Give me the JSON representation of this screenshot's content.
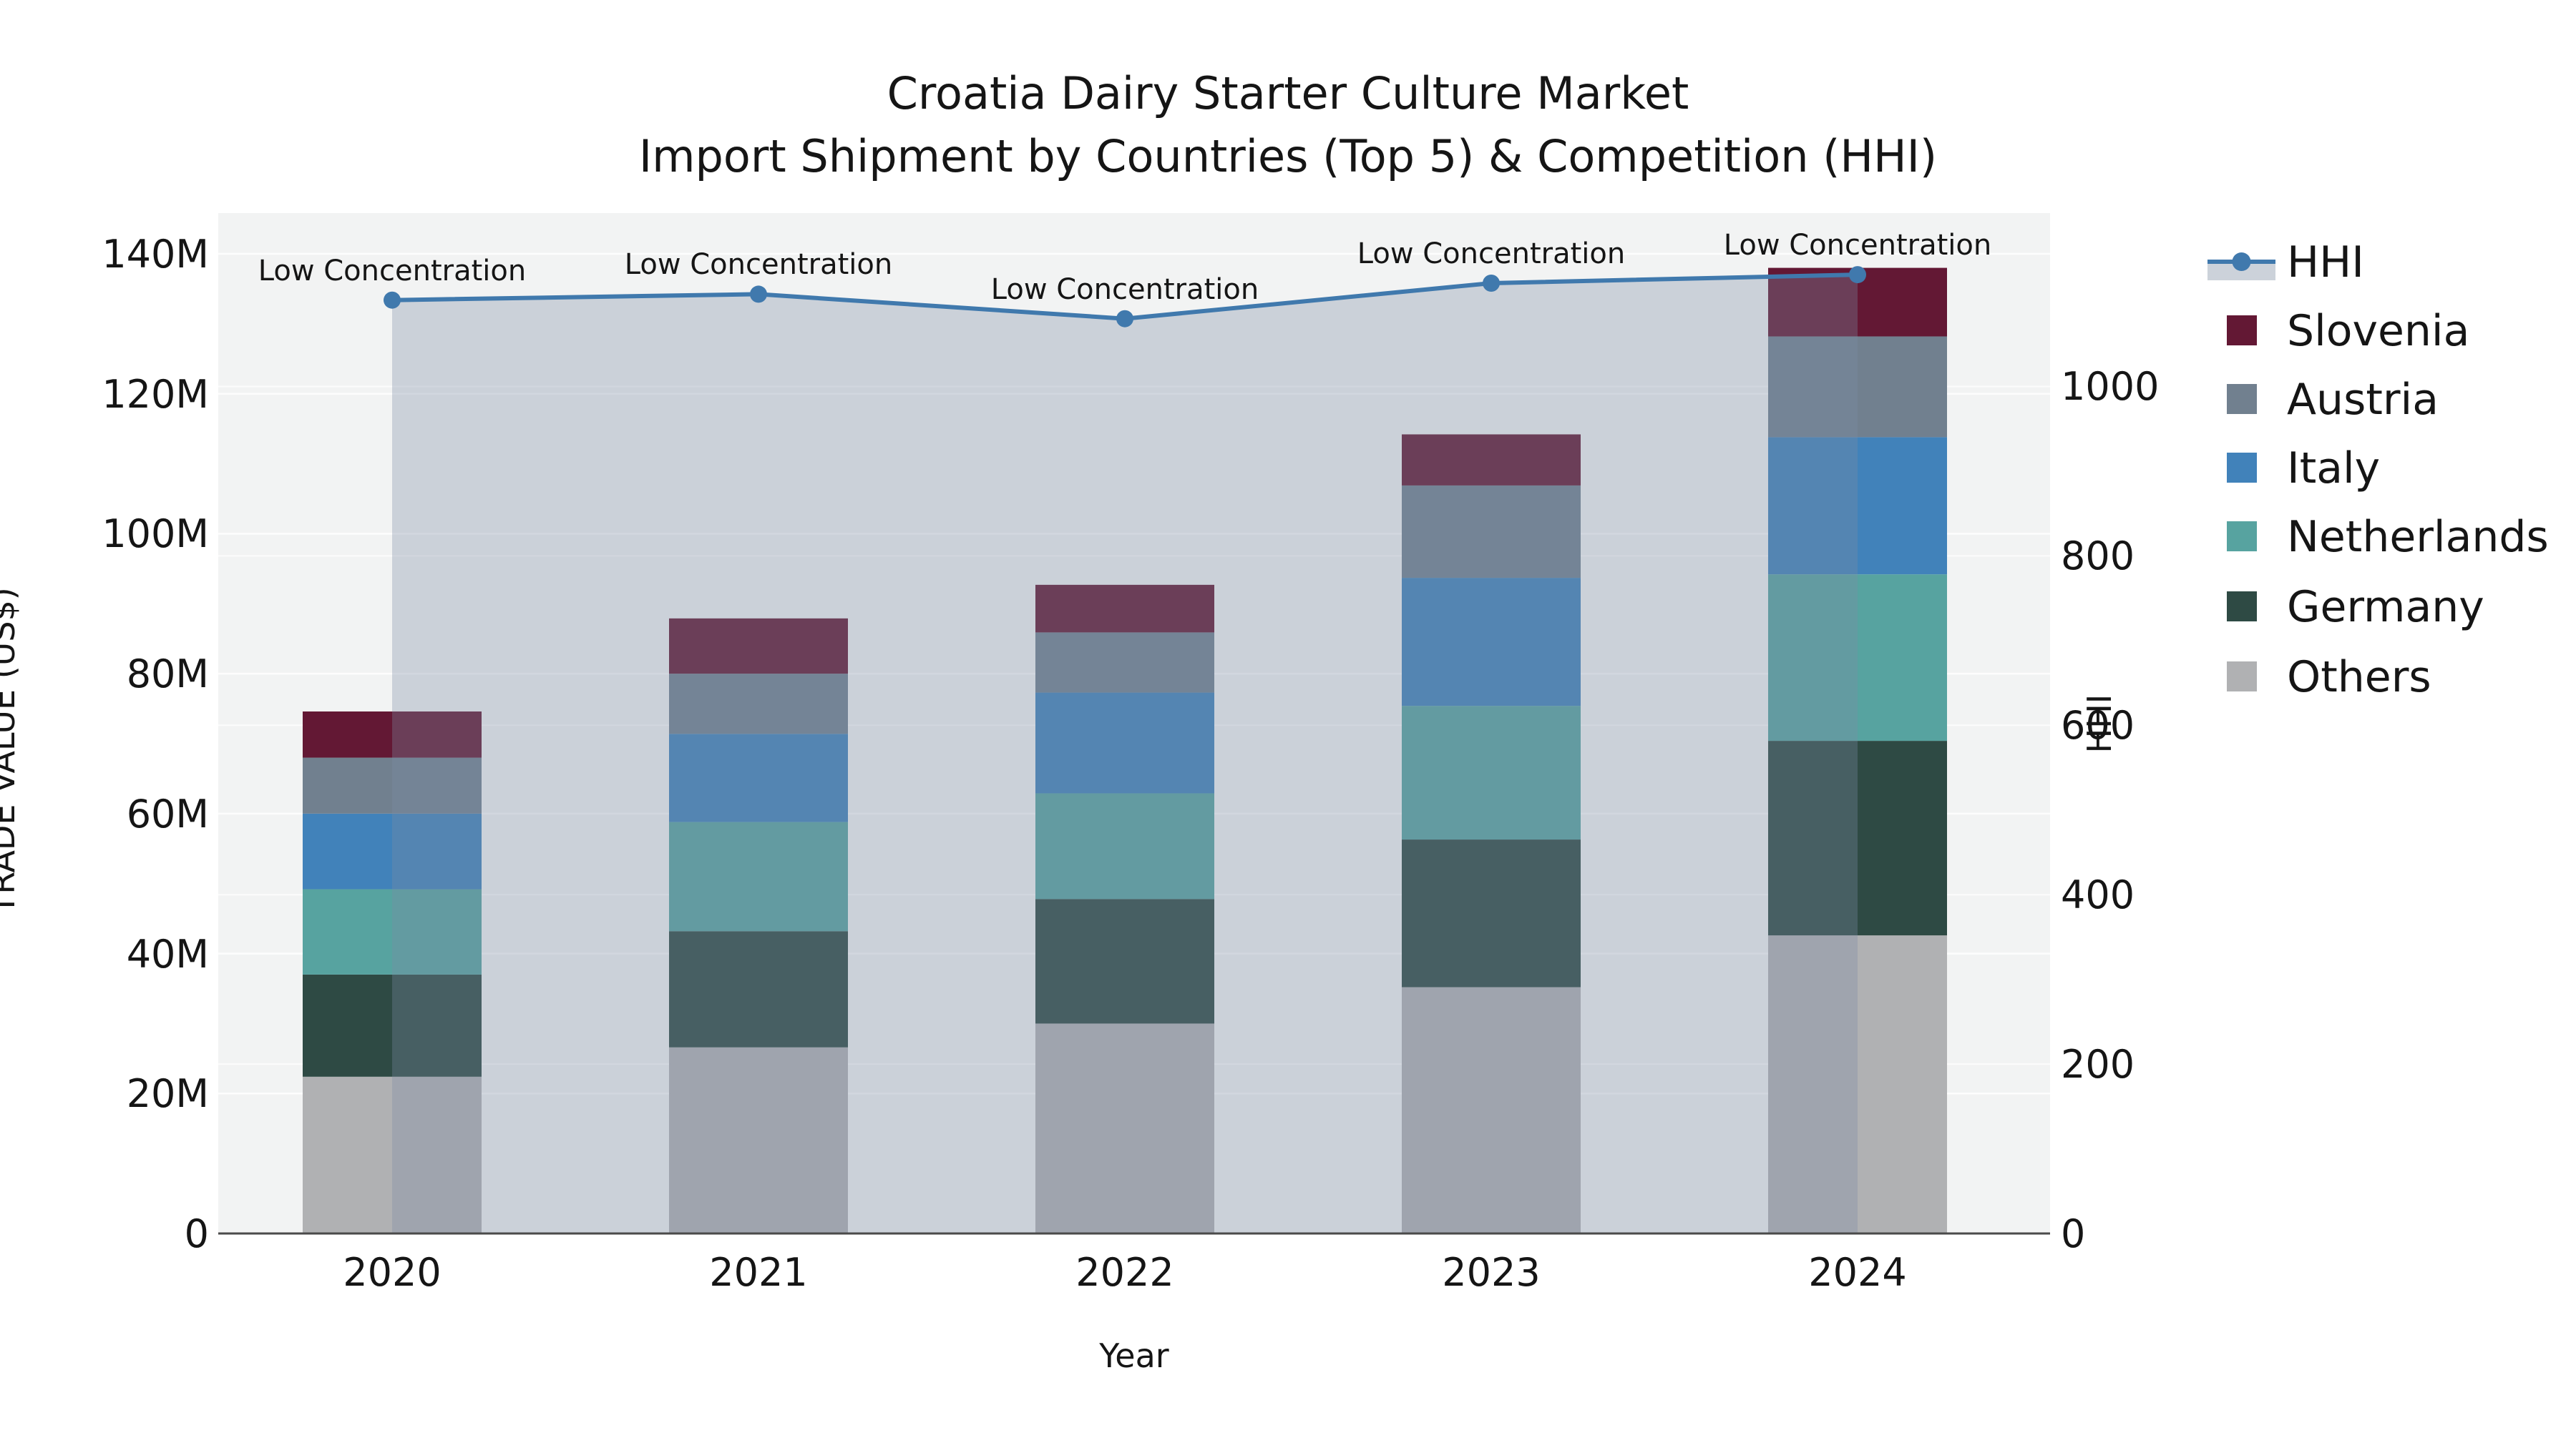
{
  "title": {
    "line1": "Croatia Dairy Starter Culture Market",
    "line2": "Import Shipment by Countries (Top 5) & Competition (HHI)"
  },
  "chart_data": {
    "type": "stacked-bar+line",
    "categories": [
      "2020",
      "2021",
      "2022",
      "2023",
      "2024"
    ],
    "unit": "US$ millions (trade value), HHI index (line)",
    "series": [
      {
        "name": "Others",
        "color": "#b0b1b3",
        "values": [
          22.4,
          26.6,
          30.0,
          35.2,
          42.6
        ]
      },
      {
        "name": "Germany",
        "color": "#2e4a44",
        "values": [
          14.6,
          16.6,
          17.8,
          21.1,
          27.8
        ]
      },
      {
        "name": "Netherlands",
        "color": "#57a3a0",
        "values": [
          12.2,
          15.6,
          15.1,
          19.1,
          23.8
        ]
      },
      {
        "name": "Italy",
        "color": "#4182ba",
        "values": [
          10.8,
          12.6,
          14.4,
          18.3,
          19.6
        ]
      },
      {
        "name": "Austria",
        "color": "#71808f",
        "values": [
          8.0,
          8.6,
          8.6,
          13.2,
          14.4
        ]
      },
      {
        "name": "Slovenia",
        "color": "#631834",
        "values": [
          6.6,
          7.9,
          6.8,
          7.3,
          9.8
        ]
      }
    ],
    "totals": [
      74.6,
      87.9,
      92.7,
      114.2,
      138.0
    ],
    "line_series": {
      "name": "HHI",
      "color": "#4079ad",
      "area_fill": "rgba(125,140,164,0.33)",
      "values": [
        1102,
        1109,
        1080,
        1122,
        1132
      ]
    },
    "annotations": [
      "Low Concentration",
      "Low Concentration",
      "Low Concentration",
      "Low Concentration",
      "Low Concentration"
    ],
    "x_label": "Year",
    "y_left": {
      "label": "TRADE VALUE (US$)",
      "ticks": [
        "0",
        "20M",
        "40M",
        "60M",
        "80M",
        "100M",
        "120M",
        "140M"
      ],
      "tick_values": [
        0,
        20,
        40,
        60,
        80,
        100,
        120,
        140
      ],
      "max": 140
    },
    "y_right": {
      "label": "HHI",
      "ticks": [
        "0",
        "200",
        "400",
        "600",
        "800",
        "1000"
      ],
      "tick_values": [
        0,
        200,
        400,
        600,
        800,
        1000
      ],
      "max": 1152
    },
    "grid": true,
    "legend_position": "right"
  },
  "legend": {
    "items": [
      {
        "label": "HHI",
        "type": "line",
        "color": "#4079ad",
        "band_color": "#ccd2da"
      },
      {
        "label": "Slovenia",
        "type": "patch",
        "color": "#631834"
      },
      {
        "label": "Austria",
        "type": "patch",
        "color": "#71808f"
      },
      {
        "label": "Italy",
        "type": "patch",
        "color": "#4182ba"
      },
      {
        "label": "Netherlands",
        "type": "patch",
        "color": "#57a3a0"
      },
      {
        "label": "Germany",
        "type": "patch",
        "color": "#2e4a44"
      },
      {
        "label": "Others",
        "type": "patch",
        "color": "#b0b1b3"
      }
    ]
  }
}
